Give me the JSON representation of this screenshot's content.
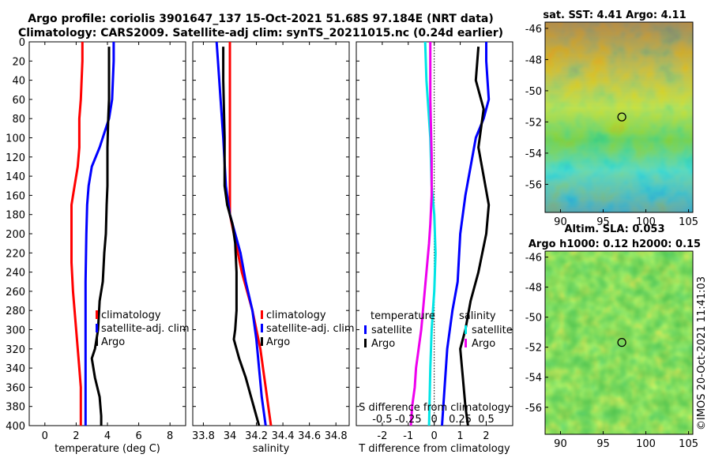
{
  "header": {
    "title1": "Argo profile: coriolis 3901647_137 15-Oct-2021 51.68S 97.184E (NRT data)",
    "title2": "Climatology: CARS2009. Satellite-adj clim: synTS_20211015.nc (0.24d earlier)"
  },
  "colors": {
    "climatology": "#ff0000",
    "satellite": "#0000ff",
    "argo": "#000000",
    "s_satellite": "#00e5e5",
    "s_argo": "#ee00ee"
  },
  "chart_data": [
    {
      "id": "temperature",
      "type": "line",
      "xlabel": "temperature (deg C)",
      "ylabel": "",
      "xlim": [
        -1,
        9
      ],
      "ylim": [
        400,
        0
      ],
      "xticks": [
        "0",
        "2",
        "4",
        "6",
        "8"
      ],
      "xtick_values": [
        0,
        2,
        4,
        6,
        8
      ],
      "yticks": [
        "0",
        "20",
        "40",
        "60",
        "80",
        "100",
        "120",
        "140",
        "160",
        "180",
        "200",
        "220",
        "240",
        "260",
        "280",
        "300",
        "320",
        "340",
        "360",
        "380",
        "400"
      ],
      "ytick_values": [
        0,
        20,
        40,
        60,
        80,
        100,
        120,
        140,
        160,
        180,
        200,
        220,
        240,
        260,
        280,
        300,
        320,
        340,
        360,
        380,
        400
      ],
      "legend": [
        "climatology",
        "satellite-adj. clim",
        "Argo"
      ],
      "legend_position": "lower-right",
      "series": [
        {
          "name": "climatology",
          "color": "#ff0000",
          "points": [
            [
              2.4,
              0
            ],
            [
              2.4,
              20
            ],
            [
              2.3,
              60
            ],
            [
              2.2,
              80
            ],
            [
              2.2,
              110
            ],
            [
              2.1,
              130
            ],
            [
              1.9,
              150
            ],
            [
              1.7,
              170
            ],
            [
              1.7,
              200
            ],
            [
              1.7,
              230
            ],
            [
              1.8,
              260
            ],
            [
              1.9,
              280
            ],
            [
              2.0,
              300
            ],
            [
              2.1,
              320
            ],
            [
              2.2,
              340
            ],
            [
              2.3,
              360
            ],
            [
              2.3,
              380
            ],
            [
              2.3,
              400
            ]
          ]
        },
        {
          "name": "satellite-adj. clim",
          "color": "#0000ff",
          "points": [
            [
              4.4,
              0
            ],
            [
              4.4,
              20
            ],
            [
              4.3,
              60
            ],
            [
              4.1,
              80
            ],
            [
              3.9,
              90
            ],
            [
              3.5,
              110
            ],
            [
              3.0,
              130
            ],
            [
              2.8,
              150
            ],
            [
              2.7,
              170
            ],
            [
              2.65,
              200
            ],
            [
              2.6,
              250
            ],
            [
              2.6,
              300
            ],
            [
              2.6,
              350
            ],
            [
              2.6,
              400
            ]
          ]
        },
        {
          "name": "Argo",
          "color": "#000000",
          "points": [
            [
              4.1,
              5
            ],
            [
              4.1,
              30
            ],
            [
              4.1,
              60
            ],
            [
              4.05,
              80
            ],
            [
              4.0,
              110
            ],
            [
              4.0,
              150
            ],
            [
              3.95,
              170
            ],
            [
              3.9,
              200
            ],
            [
              3.8,
              220
            ],
            [
              3.7,
              250
            ],
            [
              3.5,
              270
            ],
            [
              3.4,
              300
            ],
            [
              3.2,
              320
            ],
            [
              3.0,
              330
            ],
            [
              3.2,
              350
            ],
            [
              3.5,
              370
            ],
            [
              3.6,
              390
            ],
            [
              3.6,
              400
            ]
          ]
        }
      ]
    },
    {
      "id": "salinity",
      "type": "line",
      "xlabel": "salinity",
      "xlim": [
        33.72,
        34.9
      ],
      "ylim": [
        400,
        0
      ],
      "xticks": [
        "33.8",
        "34",
        "34.2",
        "34.4",
        "34.6",
        "34.8"
      ],
      "xtick_values": [
        33.8,
        34.0,
        34.2,
        34.4,
        34.6,
        34.8
      ],
      "legend": [
        "climatology",
        "satellite-adj. clim",
        "Argo"
      ],
      "legend_position": "lower-right",
      "series": [
        {
          "name": "climatology",
          "color": "#ff0000",
          "points": [
            [
              34.0,
              0
            ],
            [
              34.0,
              60
            ],
            [
              34.0,
              140
            ],
            [
              34.0,
              180
            ],
            [
              34.03,
              200
            ],
            [
              34.06,
              220
            ],
            [
              34.09,
              240
            ],
            [
              34.13,
              260
            ],
            [
              34.17,
              280
            ],
            [
              34.2,
              300
            ],
            [
              34.23,
              320
            ],
            [
              34.25,
              340
            ],
            [
              34.27,
              360
            ],
            [
              34.29,
              380
            ],
            [
              34.31,
              400
            ]
          ]
        },
        {
          "name": "satellite-adj. clim",
          "color": "#0000ff",
          "points": [
            [
              33.9,
              0
            ],
            [
              33.91,
              20
            ],
            [
              33.93,
              60
            ],
            [
              33.95,
              100
            ],
            [
              33.97,
              150
            ],
            [
              34.0,
              180
            ],
            [
              34.04,
              200
            ],
            [
              34.08,
              220
            ],
            [
              34.12,
              250
            ],
            [
              34.17,
              280
            ],
            [
              34.2,
              310
            ],
            [
              34.22,
              340
            ],
            [
              34.24,
              370
            ],
            [
              34.27,
              400
            ]
          ]
        },
        {
          "name": "Argo",
          "color": "#000000",
          "points": [
            [
              33.95,
              5
            ],
            [
              33.95,
              40
            ],
            [
              33.96,
              100
            ],
            [
              33.96,
              150
            ],
            [
              33.98,
              170
            ],
            [
              34.02,
              190
            ],
            [
              34.04,
              210
            ],
            [
              34.05,
              240
            ],
            [
              34.05,
              280
            ],
            [
              34.04,
              300
            ],
            [
              34.03,
              310
            ],
            [
              34.07,
              330
            ],
            [
              34.12,
              350
            ],
            [
              34.16,
              370
            ],
            [
              34.2,
              390
            ],
            [
              34.22,
              400
            ]
          ]
        }
      ]
    },
    {
      "id": "difference",
      "type": "line",
      "xlabel": "T difference from climatology",
      "xlim": [
        -3,
        3.02
      ],
      "ylim": [
        400,
        0
      ],
      "xticks": [
        "-2",
        "-1",
        "0",
        "1",
        "2"
      ],
      "xtick_values": [
        -2,
        -1,
        0,
        1,
        2
      ],
      "top_xlabel": "S difference from climatology",
      "top_xticks": [
        "-0.5",
        "-0.25",
        "0",
        "0.25",
        "0.5"
      ],
      "top_xtick_values": [
        -2,
        -1,
        0,
        1,
        2
      ],
      "legend_left_title": "temperature",
      "legend_left": [
        "satellite",
        "Argo"
      ],
      "legend_right_title": "salinity",
      "legend_right": [
        "satellite",
        "Argo"
      ],
      "series": [
        {
          "name": "temperature satellite",
          "color": "#0000ff",
          "points": [
            [
              2.0,
              0
            ],
            [
              2.0,
              20
            ],
            [
              2.1,
              60
            ],
            [
              1.9,
              80
            ],
            [
              1.6,
              100
            ],
            [
              1.4,
              130
            ],
            [
              1.2,
              160
            ],
            [
              1.0,
              200
            ],
            [
              0.9,
              250
            ],
            [
              0.7,
              280
            ],
            [
              0.5,
              320
            ],
            [
              0.4,
              360
            ],
            [
              0.3,
              400
            ]
          ]
        },
        {
          "name": "temperature Argo",
          "color": "#000000",
          "points": [
            [
              1.7,
              5
            ],
            [
              1.6,
              40
            ],
            [
              1.9,
              70
            ],
            [
              1.7,
              110
            ],
            [
              1.9,
              140
            ],
            [
              2.1,
              170
            ],
            [
              2.0,
              200
            ],
            [
              1.7,
              240
            ],
            [
              1.4,
              270
            ],
            [
              1.2,
              300
            ],
            [
              1.0,
              320
            ],
            [
              1.1,
              350
            ],
            [
              1.2,
              380
            ],
            [
              1.3,
              400
            ]
          ]
        },
        {
          "name": "salinity satellite",
          "color": "#00e5e5",
          "points": [
            [
              -0.35,
              0
            ],
            [
              -0.3,
              40
            ],
            [
              -0.15,
              100
            ],
            [
              -0.1,
              150
            ],
            [
              0.0,
              180
            ],
            [
              0.05,
              220
            ],
            [
              0.0,
              260
            ],
            [
              -0.05,
              280
            ],
            [
              -0.1,
              300
            ],
            [
              -0.15,
              340
            ],
            [
              -0.2,
              400
            ]
          ]
        },
        {
          "name": "salinity Argo",
          "color": "#ee00ee",
          "points": [
            [
              -0.15,
              0
            ],
            [
              -0.15,
              60
            ],
            [
              -0.1,
              120
            ],
            [
              -0.1,
              160
            ],
            [
              -0.15,
              190
            ],
            [
              -0.2,
              210
            ],
            [
              -0.3,
              240
            ],
            [
              -0.4,
              270
            ],
            [
              -0.5,
              300
            ],
            [
              -0.6,
              320
            ],
            [
              -0.7,
              340
            ],
            [
              -0.75,
              360
            ],
            [
              -0.85,
              380
            ],
            [
              -0.9,
              400
            ]
          ]
        }
      ]
    }
  ],
  "maps": [
    {
      "title": "sat. SST: 4.41 Argo: 4.11",
      "xticks": [
        "90",
        "95",
        "100",
        "105"
      ],
      "yticks": [
        "-46",
        "-48",
        "-50",
        "-52",
        "-54",
        "-56"
      ],
      "marker": {
        "lon": 97.184,
        "lat": -51.68
      }
    },
    {
      "title1": "Altim. SLA: 0.053",
      "title2": "Argo h1000: 0.12 h2000: 0.15",
      "xticks": [
        "90",
        "95",
        "100",
        "105"
      ],
      "yticks": [
        "-46",
        "-48",
        "-50",
        "-52",
        "-54",
        "-56"
      ],
      "marker": {
        "lon": 97.184,
        "lat": -51.68
      }
    }
  ],
  "watermark": "©IMOS 20-Oct-2021 11:41:03"
}
